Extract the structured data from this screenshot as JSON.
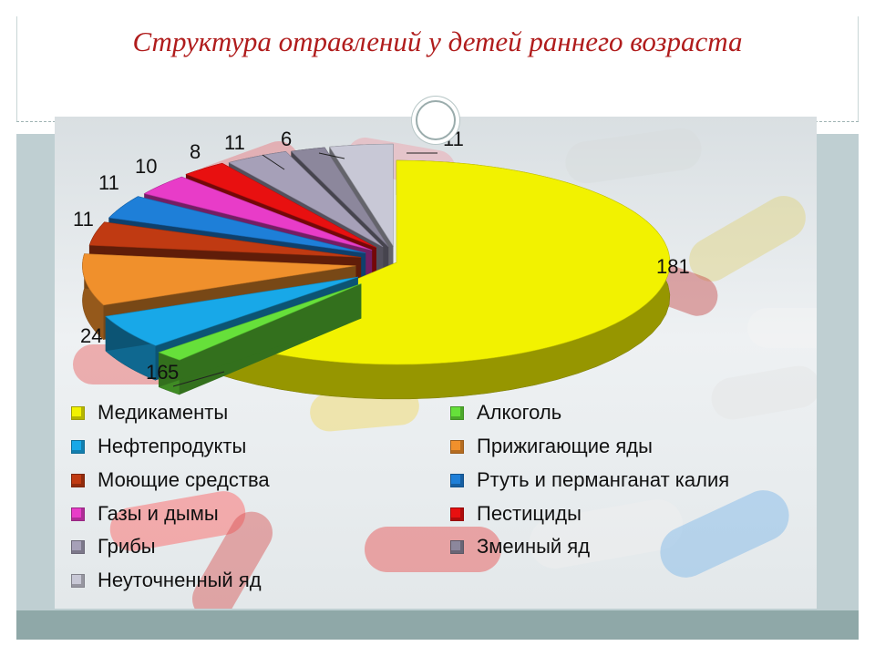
{
  "slide": {
    "title": "Структура отравлений у детей раннего возраста"
  },
  "chart_data": {
    "type": "pie",
    "title": "",
    "style": "3d-exploded",
    "legend_position": "bottom",
    "series": [
      {
        "name": "",
        "values": [
          181,
          5,
          16,
          24,
          11,
          11,
          10,
          8,
          11,
          6,
          11
        ]
      }
    ],
    "categories": [
      "Медикаменты",
      "Алкоголь",
      "Нефтепродукты",
      "Прижигающие яды",
      "Моющие средства",
      "Ртуть и перманганат калия",
      "Газы и дымы",
      "Пестициды",
      "Грибы",
      "Змеиный яд",
      "Неуточненный яд"
    ],
    "colors": [
      "#f2f200",
      "#66e03a",
      "#18a8e8",
      "#f0902c",
      "#c03a12",
      "#1e7fd8",
      "#e83cc8",
      "#e81010",
      "#a6a0b8",
      "#8c879c",
      "#c8c8d6"
    ],
    "data_labels": [
      "181",
      "5",
      "16",
      "24",
      "11",
      "11",
      "10",
      "8",
      "11",
      "6",
      "11"
    ]
  }
}
